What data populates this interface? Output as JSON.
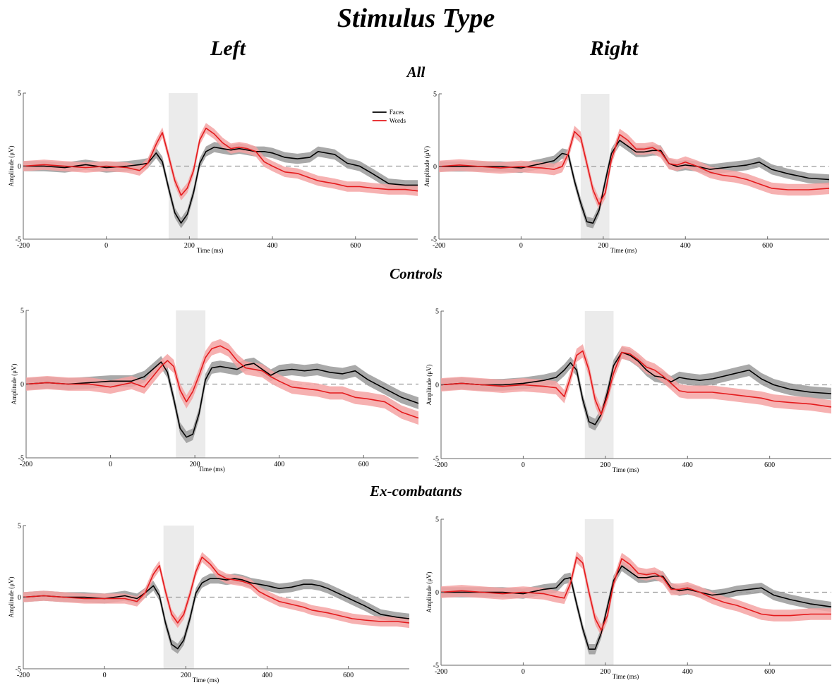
{
  "figure_title": "Stimulus Type",
  "column_titles": [
    "Left",
    "Right"
  ],
  "row_titles": [
    "All",
    "Controls",
    "Ex-combatants"
  ],
  "colors": {
    "faces": "#000000",
    "words": "#e41a1c",
    "faces_band": "#9a9a9a",
    "words_band": "#f4a3a3",
    "window": "#ebebeb"
  },
  "chart_data": [
    {
      "type": "line",
      "group": "All",
      "hemisphere": "Left",
      "xlabel": "Time (ms)",
      "ylabel": "Amplitude (μV)",
      "xlim": [
        -200,
        750
      ],
      "ylim": [
        -5,
        5
      ],
      "xticks": [
        -200,
        0,
        200,
        400,
        600
      ],
      "yticks": [
        -5,
        0,
        5
      ],
      "highlight_window": [
        150,
        220
      ],
      "legend": "top-right",
      "series": [
        {
          "name": "Faces",
          "x": [
            -200,
            -150,
            -100,
            -50,
            0,
            50,
            80,
            100,
            120,
            135,
            150,
            165,
            180,
            195,
            210,
            225,
            240,
            260,
            280,
            300,
            320,
            340,
            360,
            380,
            400,
            430,
            460,
            490,
            510,
            530,
            550,
            580,
            610,
            640,
            680,
            720,
            750
          ],
          "values": [
            0,
            0,
            -0.1,
            0.1,
            -0.1,
            0,
            0.1,
            0.2,
            0.9,
            0.3,
            -1.5,
            -3.2,
            -3.9,
            -3.3,
            -1.8,
            0.2,
            1.0,
            1.3,
            1.2,
            1.1,
            1.2,
            1.1,
            1.0,
            1.0,
            0.9,
            0.6,
            0.5,
            0.6,
            1.0,
            0.9,
            0.8,
            0.2,
            0.0,
            -0.5,
            -1.2,
            -1.3,
            -1.3
          ],
          "band": 0.35
        },
        {
          "name": "Words",
          "x": [
            -200,
            -150,
            -100,
            -50,
            0,
            50,
            80,
            100,
            120,
            135,
            150,
            165,
            180,
            195,
            210,
            225,
            240,
            260,
            280,
            300,
            320,
            340,
            360,
            380,
            400,
            430,
            460,
            490,
            510,
            530,
            550,
            580,
            610,
            640,
            680,
            720,
            750
          ],
          "values": [
            0,
            0.1,
            0,
            -0.1,
            0,
            -0.1,
            -0.3,
            0.2,
            1.5,
            2.3,
            0.7,
            -1.0,
            -2.0,
            -1.5,
            -0.3,
            1.8,
            2.6,
            2.2,
            1.6,
            1.2,
            1.3,
            1.2,
            1.0,
            0.3,
            0.0,
            -0.4,
            -0.5,
            -0.8,
            -1.0,
            -1.1,
            -1.2,
            -1.4,
            -1.4,
            -1.5,
            -1.6,
            -1.6,
            -1.7
          ],
          "band": 0.35
        }
      ]
    },
    {
      "type": "line",
      "group": "All",
      "hemisphere": "Right",
      "xlabel": "Time (ms)",
      "ylabel": "Amplitude (μV)",
      "xlim": [
        -200,
        750
      ],
      "ylim": [
        -5,
        5
      ],
      "xticks": [
        -200,
        0,
        200,
        400,
        600
      ],
      "yticks": [
        -5,
        0,
        5
      ],
      "highlight_window": [
        145,
        215
      ],
      "series": [
        {
          "name": "Faces",
          "x": [
            -200,
            -150,
            -100,
            -50,
            0,
            50,
            80,
            100,
            115,
            130,
            145,
            160,
            175,
            190,
            205,
            220,
            240,
            260,
            280,
            300,
            320,
            340,
            360,
            380,
            400,
            430,
            460,
            490,
            520,
            550,
            580,
            610,
            650,
            700,
            750
          ],
          "values": [
            0,
            0,
            0,
            0,
            -0.1,
            0.2,
            0.4,
            0.9,
            0.8,
            -1.0,
            -2.5,
            -3.8,
            -3.9,
            -3.0,
            -1.0,
            0.9,
            1.8,
            1.4,
            1.0,
            1.0,
            1.1,
            1.1,
            0.2,
            0.0,
            0.1,
            0.0,
            -0.2,
            -0.1,
            0.0,
            0.1,
            0.3,
            -0.2,
            -0.5,
            -0.8,
            -0.9
          ],
          "band": 0.35
        },
        {
          "name": "Words",
          "x": [
            -200,
            -150,
            -100,
            -50,
            0,
            50,
            80,
            100,
            115,
            130,
            145,
            160,
            175,
            190,
            205,
            220,
            240,
            260,
            280,
            300,
            320,
            340,
            360,
            380,
            400,
            430,
            460,
            490,
            520,
            550,
            580,
            610,
            650,
            700,
            750
          ],
          "values": [
            0,
            0.1,
            0,
            -0.1,
            0,
            -0.1,
            -0.2,
            0.0,
            0.9,
            2.4,
            2.0,
            0.2,
            -1.6,
            -2.6,
            -1.8,
            0.5,
            2.2,
            1.8,
            1.2,
            1.2,
            1.3,
            1.0,
            0.2,
            0.1,
            0.3,
            0.0,
            -0.4,
            -0.6,
            -0.7,
            -0.9,
            -1.2,
            -1.5,
            -1.6,
            -1.6,
            -1.5
          ],
          "band": 0.4
        }
      ]
    },
    {
      "type": "line",
      "group": "Controls",
      "hemisphere": "Left",
      "xlabel": "Time (ms)",
      "ylabel": "Amplitude (μV)",
      "xlim": [
        -200,
        730
      ],
      "ylim": [
        -5,
        5
      ],
      "xticks": [
        -200,
        0,
        200,
        400,
        600
      ],
      "yticks": [
        -5,
        0,
        5
      ],
      "highlight_window": [
        155,
        225
      ],
      "series": [
        {
          "name": "Faces",
          "x": [
            -200,
            -150,
            -100,
            -50,
            0,
            50,
            80,
            100,
            120,
            135,
            150,
            165,
            180,
            195,
            210,
            225,
            240,
            260,
            280,
            300,
            320,
            340,
            360,
            380,
            400,
            430,
            460,
            490,
            520,
            550,
            580,
            610,
            650,
            690,
            730
          ],
          "values": [
            0,
            0.1,
            0,
            0.1,
            0.2,
            0.2,
            0.5,
            1.0,
            1.5,
            0.8,
            -1.0,
            -3.0,
            -3.6,
            -3.4,
            -2.0,
            0.3,
            1.1,
            1.2,
            1.1,
            1.0,
            1.3,
            1.4,
            1.0,
            0.6,
            0.9,
            1.0,
            0.9,
            1.0,
            0.8,
            0.7,
            0.9,
            0.3,
            -0.3,
            -0.9,
            -1.3
          ],
          "band": 0.4
        },
        {
          "name": "Words",
          "x": [
            -200,
            -150,
            -100,
            -50,
            0,
            50,
            80,
            100,
            120,
            135,
            150,
            165,
            180,
            195,
            210,
            225,
            240,
            260,
            280,
            300,
            320,
            340,
            360,
            380,
            400,
            430,
            460,
            490,
            520,
            550,
            580,
            610,
            650,
            690,
            730
          ],
          "values": [
            0,
            0.1,
            0,
            0,
            -0.2,
            0.1,
            -0.2,
            0.5,
            1.2,
            1.6,
            1.2,
            -0.4,
            -1.2,
            -0.5,
            0.6,
            1.8,
            2.4,
            2.6,
            2.3,
            1.6,
            1.1,
            1.0,
            0.9,
            0.5,
            0.2,
            -0.2,
            -0.3,
            -0.4,
            -0.6,
            -0.6,
            -0.9,
            -1.0,
            -1.2,
            -1.9,
            -2.3
          ],
          "band": 0.45
        }
      ]
    },
    {
      "type": "line",
      "group": "Controls",
      "hemisphere": "Right",
      "xlabel": "Time (ms)",
      "ylabel": "Amplitude (μV)",
      "xlim": [
        -200,
        750
      ],
      "ylim": [
        -5,
        5
      ],
      "xticks": [
        -200,
        0,
        200,
        400,
        600
      ],
      "yticks": [
        -5,
        0,
        5
      ],
      "highlight_window": [
        150,
        220
      ],
      "series": [
        {
          "name": "Faces",
          "x": [
            -200,
            -150,
            -100,
            -50,
            0,
            50,
            80,
            100,
            115,
            130,
            145,
            160,
            175,
            190,
            205,
            220,
            240,
            260,
            280,
            300,
            320,
            340,
            360,
            380,
            400,
            430,
            460,
            490,
            520,
            550,
            580,
            610,
            650,
            700,
            750
          ],
          "values": [
            0,
            0.1,
            0,
            0,
            0.1,
            0.3,
            0.5,
            1.0,
            1.5,
            1.0,
            -1.0,
            -2.5,
            -2.7,
            -2.0,
            -0.5,
            1.3,
            2.2,
            2.0,
            1.6,
            1.0,
            0.6,
            0.5,
            0.2,
            0.5,
            0.4,
            0.3,
            0.4,
            0.6,
            0.8,
            1.0,
            0.4,
            0.0,
            -0.3,
            -0.5,
            -0.6
          ],
          "band": 0.4
        },
        {
          "name": "Words",
          "x": [
            -200,
            -150,
            -100,
            -50,
            0,
            50,
            80,
            100,
            115,
            130,
            145,
            160,
            175,
            190,
            205,
            220,
            240,
            260,
            280,
            300,
            320,
            340,
            360,
            380,
            400,
            430,
            460,
            490,
            520,
            550,
            580,
            610,
            650,
            700,
            750
          ],
          "values": [
            0,
            0.1,
            0,
            -0.1,
            0,
            -0.1,
            -0.2,
            -0.8,
            0.5,
            2.0,
            2.3,
            1.0,
            -1.0,
            -2.0,
            -0.8,
            0.8,
            2.2,
            2.1,
            1.7,
            1.2,
            1.0,
            0.6,
            0.1,
            -0.4,
            -0.5,
            -0.5,
            -0.5,
            -0.6,
            -0.7,
            -0.8,
            -0.9,
            -1.1,
            -1.2,
            -1.3,
            -1.5
          ],
          "band": 0.45
        }
      ]
    },
    {
      "type": "line",
      "group": "Ex-combatants",
      "hemisphere": "Left",
      "xlabel": "Time (ms)",
      "ylabel": "Amplitude (μV)",
      "xlim": [
        -200,
        750
      ],
      "ylim": [
        -5,
        5
      ],
      "xticks": [
        -200,
        0,
        200,
        400,
        600
      ],
      "yticks": [
        -5,
        0,
        5
      ],
      "highlight_window": [
        145,
        220
      ],
      "series": [
        {
          "name": "Faces",
          "x": [
            -200,
            -150,
            -100,
            -50,
            0,
            50,
            80,
            100,
            120,
            135,
            150,
            165,
            180,
            195,
            210,
            225,
            240,
            260,
            280,
            300,
            320,
            340,
            360,
            380,
            400,
            430,
            460,
            490,
            510,
            530,
            550,
            580,
            610,
            640,
            680,
            720,
            750
          ],
          "values": [
            0,
            0.1,
            0,
            0,
            -0.1,
            0.1,
            -0.1,
            0.3,
            0.8,
            0.1,
            -1.8,
            -3.3,
            -3.6,
            -3.0,
            -1.5,
            0.3,
            1.0,
            1.3,
            1.3,
            1.2,
            1.3,
            1.2,
            1.0,
            0.9,
            0.8,
            0.6,
            0.7,
            0.9,
            0.9,
            0.8,
            0.6,
            0.2,
            -0.2,
            -0.6,
            -1.2,
            -1.4,
            -1.5
          ],
          "band": 0.35
        },
        {
          "name": "Words",
          "x": [
            -200,
            -150,
            -100,
            -50,
            0,
            50,
            80,
            100,
            120,
            135,
            150,
            165,
            180,
            195,
            210,
            225,
            240,
            260,
            280,
            300,
            320,
            340,
            360,
            380,
            400,
            430,
            460,
            490,
            510,
            530,
            550,
            580,
            610,
            640,
            680,
            720,
            750
          ],
          "values": [
            0,
            0.1,
            0,
            -0.1,
            -0.1,
            -0.1,
            -0.3,
            0.3,
            1.6,
            2.2,
            0.4,
            -1.2,
            -1.8,
            -1.2,
            0.2,
            1.8,
            2.8,
            2.3,
            1.6,
            1.3,
            1.2,
            1.1,
            0.9,
            0.4,
            0.1,
            -0.3,
            -0.5,
            -0.7,
            -0.9,
            -1.0,
            -1.1,
            -1.3,
            -1.5,
            -1.6,
            -1.7,
            -1.7,
            -1.8
          ],
          "band": 0.35
        }
      ]
    },
    {
      "type": "line",
      "group": "Ex-combatants",
      "hemisphere": "Right",
      "xlabel": "Time (ms)",
      "ylabel": "Amplitude (μV)",
      "xlim": [
        -200,
        750
      ],
      "ylim": [
        -5,
        5
      ],
      "xticks": [
        -200,
        0,
        200,
        400,
        600
      ],
      "yticks": [
        -5,
        0,
        5
      ],
      "highlight_window": [
        150,
        220
      ],
      "series": [
        {
          "name": "Faces",
          "x": [
            -200,
            -150,
            -100,
            -50,
            0,
            50,
            80,
            100,
            115,
            130,
            145,
            160,
            175,
            190,
            205,
            220,
            240,
            260,
            280,
            300,
            320,
            340,
            360,
            380,
            400,
            430,
            460,
            490,
            520,
            550,
            580,
            610,
            650,
            700,
            750
          ],
          "values": [
            0,
            0,
            0,
            0,
            -0.1,
            0.2,
            0.3,
            0.9,
            1.0,
            -0.8,
            -2.5,
            -3.9,
            -3.9,
            -2.8,
            -1.0,
            0.8,
            1.8,
            1.4,
            1.0,
            1.0,
            1.1,
            1.1,
            0.3,
            0.1,
            0.2,
            0.0,
            -0.2,
            -0.1,
            0.1,
            0.2,
            0.3,
            -0.2,
            -0.5,
            -0.8,
            -1.0
          ],
          "band": 0.35
        },
        {
          "name": "Words",
          "x": [
            -200,
            -150,
            -100,
            -50,
            0,
            50,
            80,
            100,
            115,
            130,
            145,
            160,
            175,
            190,
            205,
            220,
            240,
            260,
            280,
            300,
            320,
            340,
            360,
            380,
            400,
            430,
            460,
            490,
            520,
            550,
            580,
            610,
            650,
            700,
            750
          ],
          "values": [
            0,
            0.1,
            0,
            -0.1,
            0,
            -0.1,
            -0.3,
            -0.4,
            0.6,
            2.4,
            2.0,
            0.0,
            -1.8,
            -2.6,
            -1.6,
            0.6,
            2.3,
            1.9,
            1.3,
            1.2,
            1.3,
            1.0,
            0.2,
            0.2,
            0.3,
            0.0,
            -0.4,
            -0.7,
            -0.9,
            -1.2,
            -1.5,
            -1.6,
            -1.6,
            -1.5,
            -1.5
          ],
          "band": 0.4
        }
      ]
    }
  ]
}
